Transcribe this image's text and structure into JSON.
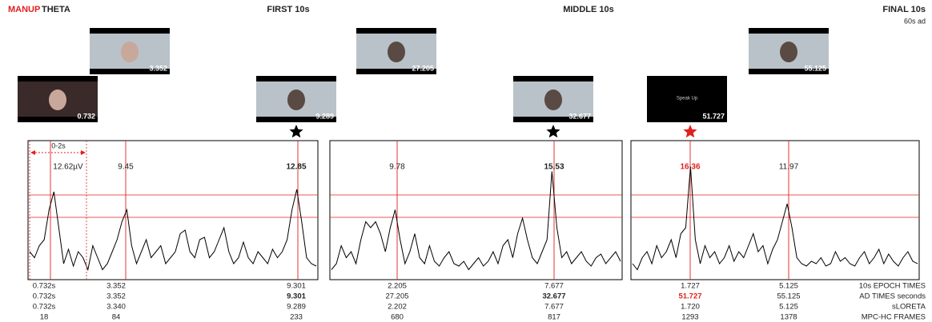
{
  "header": {
    "brand": "MANUP",
    "title": "THETA",
    "sections": [
      "FIRST 10s",
      "MIDDLE 10s",
      "FINAL 10s"
    ],
    "subtitle": "60s ad"
  },
  "thumbnails": [
    {
      "time": "0.732"
    },
    {
      "time": "3.352"
    },
    {
      "time": "9.289"
    },
    {
      "time": "27.205"
    },
    {
      "time": "32.677"
    },
    {
      "time": "51.727",
      "caption": "Speak Up"
    },
    {
      "time": "55.125"
    }
  ],
  "annotation": "0-2s",
  "panels": [
    {
      "peak_labels": [
        "12.62µV",
        "9.45",
        "12.85"
      ],
      "trace": [
        20,
        15,
        25,
        30,
        55,
        70,
        40,
        10,
        22,
        8,
        20,
        15,
        5,
        25,
        15,
        5,
        10,
        20,
        30,
        45,
        55,
        25,
        10,
        20,
        30,
        15,
        20,
        25,
        10,
        15,
        20,
        35,
        38,
        20,
        15,
        30,
        32,
        15,
        20,
        30,
        40,
        20,
        10,
        15,
        28,
        15,
        10,
        20,
        15,
        10,
        22,
        15,
        20,
        30,
        55,
        72,
        45,
        15,
        10,
        8
      ]
    },
    {
      "peak_labels": [
        "9.78",
        "15.53"
      ],
      "trace": [
        5,
        10,
        25,
        15,
        20,
        10,
        30,
        45,
        40,
        45,
        35,
        20,
        40,
        55,
        30,
        10,
        20,
        35,
        15,
        10,
        25,
        12,
        8,
        15,
        20,
        10,
        8,
        12,
        5,
        10,
        15,
        8,
        12,
        20,
        10,
        25,
        30,
        15,
        35,
        48,
        30,
        15,
        10,
        20,
        30,
        87,
        40,
        15,
        20,
        10,
        15,
        20,
        12,
        8,
        15,
        18,
        10,
        15,
        20,
        12
      ]
    },
    {
      "peak_labels": [
        "16.36",
        "11.97"
      ],
      "trace": [
        10,
        5,
        15,
        20,
        10,
        25,
        15,
        20,
        30,
        15,
        35,
        40,
        91,
        30,
        10,
        25,
        15,
        20,
        10,
        15,
        25,
        12,
        20,
        15,
        25,
        35,
        20,
        25,
        10,
        22,
        30,
        45,
        60,
        40,
        15,
        10,
        8,
        12,
        10,
        15,
        8,
        10,
        20,
        12,
        15,
        10,
        8,
        15,
        20,
        10,
        15,
        22,
        10,
        18,
        12,
        8,
        15,
        20,
        12,
        10
      ]
    }
  ],
  "table": {
    "row_labels": [
      "10s EPOCH TIMES",
      "AD TIMES seconds",
      "sLORETA",
      "MPC-HC FRAMES"
    ],
    "columns": [
      [
        "0.732s",
        "0.732s",
        "0.732s",
        "18"
      ],
      [
        "3.352",
        "3.352",
        "3.340",
        "84"
      ],
      [
        "9.301",
        "9.301",
        "9.289",
        "233"
      ],
      [
        "2.205",
        "27.205",
        "2.202",
        "680"
      ],
      [
        "7.677",
        "32.677",
        "7.677",
        "817"
      ],
      [
        "1.727",
        "51.727",
        "1.720",
        "1293"
      ],
      [
        "5.125",
        "55.125",
        "5.125",
        "1378"
      ]
    ]
  }
}
